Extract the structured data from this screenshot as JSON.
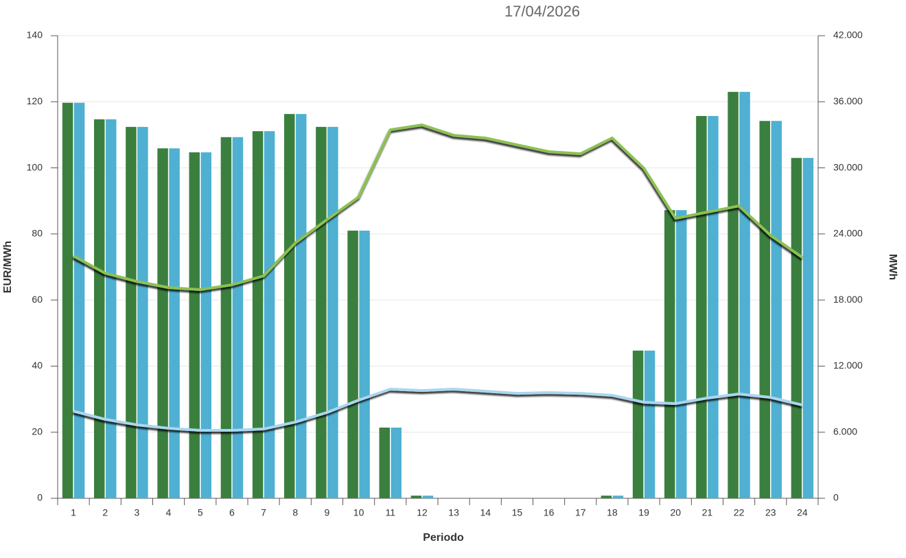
{
  "chart_data": {
    "type": "bar",
    "title": "17/04/2026",
    "x_label": "Periodo",
    "y_label": "EUR/MWh",
    "y2_label": "MWh",
    "categories": [
      "1",
      "2",
      "3",
      "4",
      "5",
      "6",
      "7",
      "8",
      "9",
      "10",
      "11",
      "12",
      "13",
      "14",
      "15",
      "16",
      "17",
      "18",
      "19",
      "20",
      "21",
      "22",
      "23",
      "24"
    ],
    "ylim": [
      0,
      140
    ],
    "yticks": [
      0,
      20,
      40,
      60,
      80,
      100,
      120,
      140
    ],
    "y2lim": [
      0,
      42000
    ],
    "y2ticks": [
      {
        "value": 0,
        "label": "0"
      },
      {
        "value": 6000,
        "label": "6.000"
      },
      {
        "value": 12000,
        "label": "12.000"
      },
      {
        "value": 18000,
        "label": "18.000"
      },
      {
        "value": 24000,
        "label": "24.000"
      },
      {
        "value": 30000,
        "label": "30.000"
      },
      {
        "value": 36000,
        "label": "36.000"
      },
      {
        "value": 42000,
        "label": "42.000"
      }
    ],
    "grid": true,
    "series": [
      {
        "type": "bar",
        "color": "#3b7f3f",
        "values": [
          119.7,
          114.7,
          112.4,
          105.9,
          104.7,
          109.3,
          111.1,
          116.3,
          112.4,
          81.0,
          21.4,
          0.8,
          0,
          0,
          0,
          0,
          0,
          0.8,
          44.7,
          87.2,
          115.7,
          123.0,
          114.2,
          103.0
        ]
      },
      {
        "type": "bar",
        "color": "#4fb0d2",
        "values": [
          119.7,
          114.7,
          112.4,
          105.9,
          104.7,
          109.3,
          111.1,
          116.3,
          112.4,
          81.0,
          21.4,
          0.8,
          0,
          0,
          0,
          0,
          0,
          0.8,
          44.7,
          87.2,
          115.7,
          123.0,
          114.2,
          103.0
        ]
      },
      {
        "type": "line",
        "axis": "y2",
        "color": "#8cc152",
        "values": [
          22000,
          20440,
          19690,
          19130,
          18940,
          19380,
          20190,
          23180,
          25300,
          27350,
          33460,
          33900,
          32960,
          32710,
          32090,
          31470,
          31280,
          32710,
          29970,
          25420,
          25980,
          26540,
          23870,
          21870
        ]
      },
      {
        "type": "line",
        "axis": "y2",
        "color": "#aad6ee",
        "values": [
          7910,
          7170,
          6670,
          6360,
          6170,
          6170,
          6290,
          6920,
          7790,
          8910,
          9910,
          9780,
          9910,
          9720,
          9530,
          9600,
          9530,
          9350,
          8720,
          8600,
          9100,
          9470,
          9160,
          8470
        ]
      }
    ]
  }
}
